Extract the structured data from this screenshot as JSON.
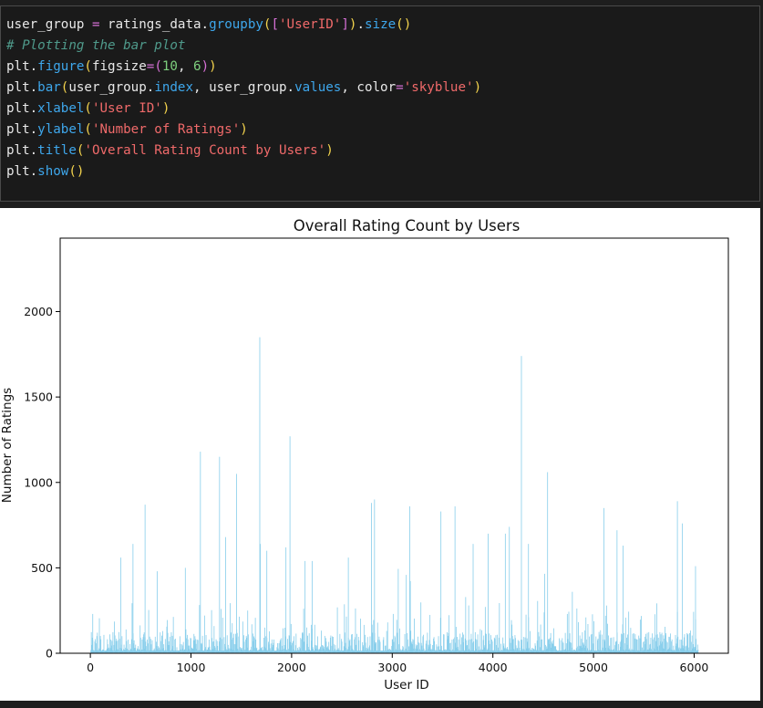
{
  "code_cell": {
    "lines": [
      [
        {
          "t": "user_group ",
          "c": "var"
        },
        {
          "t": "=",
          "c": "op"
        },
        {
          "t": " ratings_data.",
          "c": "var"
        },
        {
          "t": "groupby",
          "c": "fn"
        },
        {
          "t": "(",
          "c": "br"
        },
        {
          "t": "[",
          "c": "br2"
        },
        {
          "t": "'UserID'",
          "c": "str"
        },
        {
          "t": "]",
          "c": "br2"
        },
        {
          "t": ")",
          "c": "br"
        },
        {
          "t": ".",
          "c": "var"
        },
        {
          "t": "size",
          "c": "fn"
        },
        {
          "t": "()",
          "c": "br"
        }
      ],
      [
        {
          "t": "# Plotting the bar plot",
          "c": "cm"
        }
      ],
      [
        {
          "t": "plt.",
          "c": "var"
        },
        {
          "t": "figure",
          "c": "fn"
        },
        {
          "t": "(",
          "c": "br"
        },
        {
          "t": "figsize",
          "c": "var"
        },
        {
          "t": "=",
          "c": "op"
        },
        {
          "t": "(",
          "c": "br2"
        },
        {
          "t": "10",
          "c": "num"
        },
        {
          "t": ", ",
          "c": "var"
        },
        {
          "t": "6",
          "c": "num"
        },
        {
          "t": ")",
          "c": "br2"
        },
        {
          "t": ")",
          "c": "br"
        }
      ],
      [
        {
          "t": "plt.",
          "c": "var"
        },
        {
          "t": "bar",
          "c": "fn"
        },
        {
          "t": "(",
          "c": "br"
        },
        {
          "t": "user_group.",
          "c": "var"
        },
        {
          "t": "index",
          "c": "fn"
        },
        {
          "t": ", user_group.",
          "c": "var"
        },
        {
          "t": "values",
          "c": "fn"
        },
        {
          "t": ", ",
          "c": "var"
        },
        {
          "t": "color",
          "c": "var"
        },
        {
          "t": "=",
          "c": "op"
        },
        {
          "t": "'skyblue'",
          "c": "str"
        },
        {
          "t": ")",
          "c": "br"
        }
      ],
      [
        {
          "t": "plt.",
          "c": "var"
        },
        {
          "t": "xlabel",
          "c": "fn"
        },
        {
          "t": "(",
          "c": "br"
        },
        {
          "t": "'User ID'",
          "c": "str"
        },
        {
          "t": ")",
          "c": "br"
        }
      ],
      [
        {
          "t": "plt.",
          "c": "var"
        },
        {
          "t": "ylabel",
          "c": "fn"
        },
        {
          "t": "(",
          "c": "br"
        },
        {
          "t": "'Number of Ratings'",
          "c": "str"
        },
        {
          "t": ")",
          "c": "br"
        }
      ],
      [
        {
          "t": "plt.",
          "c": "var"
        },
        {
          "t": "title",
          "c": "fn"
        },
        {
          "t": "(",
          "c": "br"
        },
        {
          "t": "'Overall Rating Count by Users'",
          "c": "str"
        },
        {
          "t": ")",
          "c": "br"
        }
      ],
      [
        {
          "t": "plt.",
          "c": "var"
        },
        {
          "t": "show",
          "c": "fn"
        },
        {
          "t": "()",
          "c": "br"
        }
      ]
    ]
  },
  "chart_data": {
    "type": "bar",
    "title": "Overall Rating Count by Users",
    "xlabel": "User ID",
    "ylabel": "Number of Ratings",
    "bar_color": "#87ceeb",
    "xlim": [
      -300,
      6340
    ],
    "ylim": [
      0,
      2430
    ],
    "x_ticks": [
      0,
      1000,
      2000,
      3000,
      4000,
      5000,
      6000
    ],
    "x_tick_labels": [
      "0",
      "1000",
      "2000",
      "3000",
      "4000",
      "5000",
      "6000"
    ],
    "y_ticks": [
      0,
      500,
      1000,
      1500,
      2000
    ],
    "y_tick_labels": [
      "0",
      "500",
      "1000",
      "1500",
      "2000"
    ],
    "grid": false,
    "x_range": [
      1,
      6040
    ],
    "notable_bars": [
      {
        "x": 20,
        "y": 230
      },
      {
        "x": 300,
        "y": 560
      },
      {
        "x": 420,
        "y": 640
      },
      {
        "x": 540,
        "y": 870
      },
      {
        "x": 660,
        "y": 480
      },
      {
        "x": 940,
        "y": 500
      },
      {
        "x": 1090,
        "y": 1180
      },
      {
        "x": 1280,
        "y": 1150
      },
      {
        "x": 1340,
        "y": 680
      },
      {
        "x": 1450,
        "y": 1050
      },
      {
        "x": 1560,
        "y": 250
      },
      {
        "x": 1680,
        "y": 1850
      },
      {
        "x": 1685,
        "y": 640
      },
      {
        "x": 1750,
        "y": 600
      },
      {
        "x": 1940,
        "y": 620
      },
      {
        "x": 1980,
        "y": 1270
      },
      {
        "x": 2130,
        "y": 540
      },
      {
        "x": 2200,
        "y": 540
      },
      {
        "x": 2560,
        "y": 560
      },
      {
        "x": 2790,
        "y": 880
      },
      {
        "x": 2820,
        "y": 900
      },
      {
        "x": 3170,
        "y": 860
      },
      {
        "x": 3480,
        "y": 830
      },
      {
        "x": 3620,
        "y": 860
      },
      {
        "x": 3800,
        "y": 640
      },
      {
        "x": 3950,
        "y": 700
      },
      {
        "x": 4120,
        "y": 700
      },
      {
        "x": 4160,
        "y": 740
      },
      {
        "x": 4280,
        "y": 1740
      },
      {
        "x": 4350,
        "y": 640
      },
      {
        "x": 4540,
        "y": 1060
      },
      {
        "x": 5100,
        "y": 850
      },
      {
        "x": 5230,
        "y": 720
      },
      {
        "x": 5290,
        "y": 630
      },
      {
        "x": 5830,
        "y": 890
      },
      {
        "x": 5880,
        "y": 760
      },
      {
        "x": 6010,
        "y": 510
      }
    ]
  }
}
